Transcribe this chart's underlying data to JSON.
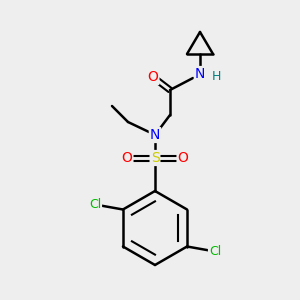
{
  "background_color": "#eeeeee",
  "bond_color": "#000000",
  "atom_colors": {
    "N": "#0000ff",
    "O": "#ff0000",
    "S": "#cccc00",
    "Cl": "#00bb00",
    "H": "#008080",
    "C": "#000000"
  },
  "figsize": [
    3.0,
    3.0
  ],
  "dpi": 100
}
